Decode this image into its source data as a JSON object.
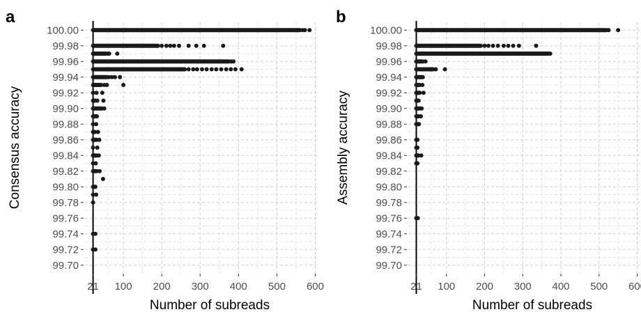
{
  "chart_data": [
    {
      "panel": "a",
      "type": "scatter",
      "xlabel": "Number of subreads",
      "ylabel": "Consensus accuracy",
      "xlim": [
        0,
        610
      ],
      "ylim": [
        99.69,
        100.01
      ],
      "xticks": [
        21,
        100,
        200,
        300,
        400,
        500,
        600
      ],
      "yticks": [
        99.7,
        99.72,
        99.74,
        99.76,
        99.78,
        99.8,
        99.82,
        99.84,
        99.86,
        99.88,
        99.9,
        99.92,
        99.94,
        99.96,
        99.98,
        100.0
      ],
      "grid": true,
      "reference_x": 21,
      "rows": [
        {
          "y": 100.0,
          "band": [
            21,
            560
          ],
          "extra": [
            567,
            573,
            585
          ]
        },
        {
          "y": 99.98,
          "band": [
            21,
            190
          ],
          "extra": [
            200,
            212,
            222,
            232,
            245,
            270,
            290,
            310,
            360
          ]
        },
        {
          "y": 99.97,
          "band": [
            21,
            55
          ],
          "extra": [
            60,
            63,
            84
          ]
        },
        {
          "y": 99.96,
          "band": [
            21,
            375
          ],
          "extra": [
            381,
            387
          ]
        },
        {
          "y": 99.95,
          "band": [
            21,
            260
          ],
          "extra": [
            270,
            282,
            292,
            305,
            317,
            330,
            342,
            355,
            368,
            380,
            392,
            408
          ]
        },
        {
          "y": 99.94,
          "band": [
            21,
            55
          ],
          "extra": [
            58,
            62,
            70,
            78,
            91
          ]
        },
        {
          "y": 99.93,
          "band": [
            21,
            42
          ],
          "extra": [
            50,
            57,
            100
          ]
        },
        {
          "y": 99.92,
          "band": [
            21,
            22
          ],
          "extra": [
            30,
            45
          ]
        },
        {
          "y": 99.91,
          "band": [
            21,
            26
          ],
          "extra": [
            32,
            48
          ]
        },
        {
          "y": 99.9,
          "band": [
            21,
            44
          ],
          "extra": [
            50
          ]
        },
        {
          "y": 99.89,
          "band": [
            21,
            31
          ],
          "extra": []
        },
        {
          "y": 99.88,
          "band": [
            21,
            21
          ],
          "extra": [
            29
          ]
        },
        {
          "y": 99.87,
          "band": [
            21,
            26
          ],
          "extra": [
            34
          ]
        },
        {
          "y": 99.86,
          "band": [
            21,
            30
          ],
          "extra": [
            37
          ]
        },
        {
          "y": 99.85,
          "band": [
            21,
            21
          ],
          "extra": [
            32
          ]
        },
        {
          "y": 99.84,
          "band": [
            21,
            30
          ],
          "extra": [
            36
          ]
        },
        {
          "y": 99.83,
          "band": [
            21,
            21
          ],
          "extra": [
            28
          ]
        },
        {
          "y": 99.82,
          "band": [
            21,
            30
          ],
          "extra": [
            38
          ]
        },
        {
          "y": 99.81,
          "band": [],
          "extra": [
            47
          ]
        },
        {
          "y": 99.8,
          "band": [
            21,
            27
          ],
          "extra": []
        },
        {
          "y": 99.79,
          "band": [
            21,
            21
          ],
          "extra": [
            29
          ]
        },
        {
          "y": 99.78,
          "band": [
            21,
            21
          ],
          "extra": []
        },
        {
          "y": 99.74,
          "band": [
            21,
            21
          ],
          "extra": [
            27
          ]
        },
        {
          "y": 99.72,
          "band": [
            21,
            21
          ],
          "extra": [
            27
          ]
        }
      ]
    },
    {
      "panel": "b",
      "type": "scatter",
      "xlabel": "Number of subreads",
      "ylabel": "Assembly accuracy",
      "xlim": [
        0,
        610
      ],
      "ylim": [
        99.69,
        100.01
      ],
      "xticks": [
        21,
        100,
        200,
        300,
        400,
        500,
        600
      ],
      "yticks": [
        99.7,
        99.72,
        99.74,
        99.76,
        99.78,
        99.8,
        99.82,
        99.84,
        99.86,
        99.88,
        99.9,
        99.92,
        99.94,
        99.96,
        99.98,
        100.0
      ],
      "grid": true,
      "reference_x": 21,
      "rows": [
        {
          "y": 100.0,
          "band": [
            21,
            520
          ],
          "extra": [
            525,
            550
          ]
        },
        {
          "y": 99.98,
          "band": [
            21,
            190
          ],
          "extra": [
            200,
            210,
            222,
            235,
            250,
            262,
            275,
            290,
            335
          ]
        },
        {
          "y": 99.97,
          "band": [
            21,
            368
          ],
          "extra": [
            372
          ]
        },
        {
          "y": 99.96,
          "band": [
            21,
            38
          ],
          "extra": [
            45
          ]
        },
        {
          "y": 99.95,
          "band": [
            21,
            65
          ],
          "extra": [
            72,
            96
          ]
        },
        {
          "y": 99.94,
          "band": [
            21,
            38
          ],
          "extra": []
        },
        {
          "y": 99.93,
          "band": [
            21,
            30
          ],
          "extra": [
            37
          ]
        },
        {
          "y": 99.92,
          "band": [
            21,
            30
          ],
          "extra": [
            40
          ]
        },
        {
          "y": 99.91,
          "band": [
            21,
            27
          ],
          "extra": []
        },
        {
          "y": 99.9,
          "band": [
            21,
            30
          ],
          "extra": [
            35
          ]
        },
        {
          "y": 99.89,
          "band": [
            21,
            27
          ],
          "extra": [
            33
          ]
        },
        {
          "y": 99.88,
          "band": [
            21,
            28
          ],
          "extra": []
        },
        {
          "y": 99.86,
          "band": [
            21,
            21
          ],
          "extra": [
            24
          ]
        },
        {
          "y": 99.85,
          "band": [
            21,
            21
          ],
          "extra": [
            24
          ]
        },
        {
          "y": 99.84,
          "band": [
            21,
            27
          ],
          "extra": [
            34
          ]
        },
        {
          "y": 99.83,
          "band": [
            21,
            21
          ],
          "extra": [
            24
          ]
        },
        {
          "y": 99.76,
          "band": [
            21,
            21
          ],
          "extra": [
            25
          ]
        }
      ]
    }
  ]
}
